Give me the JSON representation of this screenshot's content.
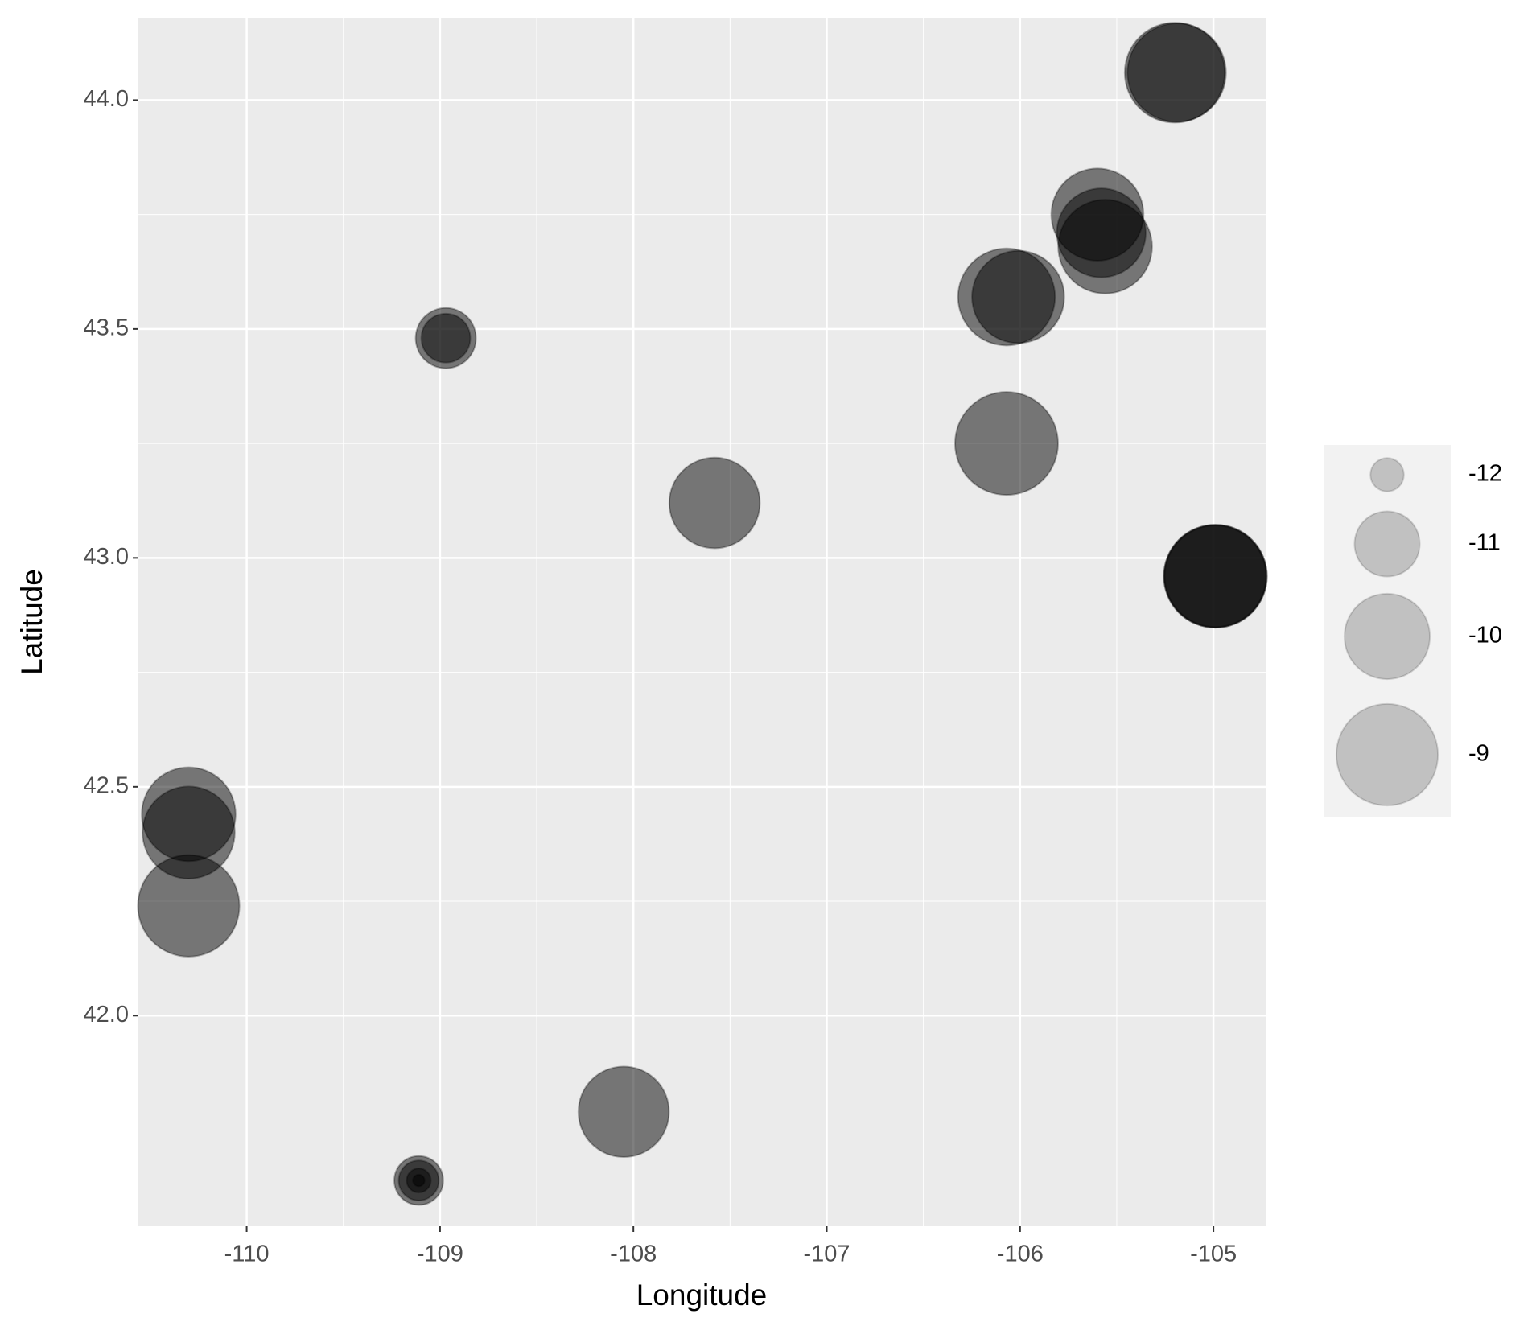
{
  "chart_data": {
    "type": "scatter",
    "x_label": "Longitude",
    "y_label": "Latitude",
    "xlim": [
      -110.56,
      -104.73
    ],
    "ylim": [
      41.54,
      44.18
    ],
    "xticks": [
      -110,
      -109,
      -108,
      -107,
      -106,
      -105
    ],
    "yticks": [
      {
        "value": 42.0,
        "label": "42.0"
      },
      {
        "value": 42.5,
        "label": "42.5"
      },
      {
        "value": 43.0,
        "label": "43.0"
      },
      {
        "value": 43.5,
        "label": "43.5"
      },
      {
        "value": 44.0,
        "label": "44.0"
      }
    ],
    "grid": true,
    "legend": "right",
    "color": "#000000",
    "size_lim": [
      -12.3,
      -8.9
    ],
    "size_ticks": [
      -12,
      -11,
      -10,
      -9
    ],
    "x": [
      -105.2,
      -105.19,
      -105.6,
      -105.56,
      -105.58,
      -106.07,
      -106.01,
      -108.97,
      -108.97,
      -106.07,
      -107.58,
      -104.99,
      -104.99,
      -104.99,
      -110.3,
      -110.3,
      -110.3,
      -108.05,
      -109.11,
      -109.11,
      -109.11,
      -109.11
    ],
    "y": [
      44.06,
      44.06,
      43.75,
      43.68,
      43.71,
      43.57,
      43.57,
      43.48,
      43.48,
      43.25,
      43.12,
      42.96,
      42.96,
      42.96,
      42.44,
      42.4,
      42.24,
      41.79,
      41.64,
      41.64,
      41.64,
      41.64
    ],
    "sizes": [
      -9.1,
      -9.2,
      -9.6,
      -9.5,
      -9.8,
      -9.3,
      -9.6,
      -11.2,
      -11.6,
      -8.9,
      -9.7,
      -8.9,
      -8.9,
      -9.0,
      -9.5,
      -9.6,
      -9.0,
      -9.7,
      -11.6,
      -11.85,
      -12.16,
      -12.28
    ]
  }
}
